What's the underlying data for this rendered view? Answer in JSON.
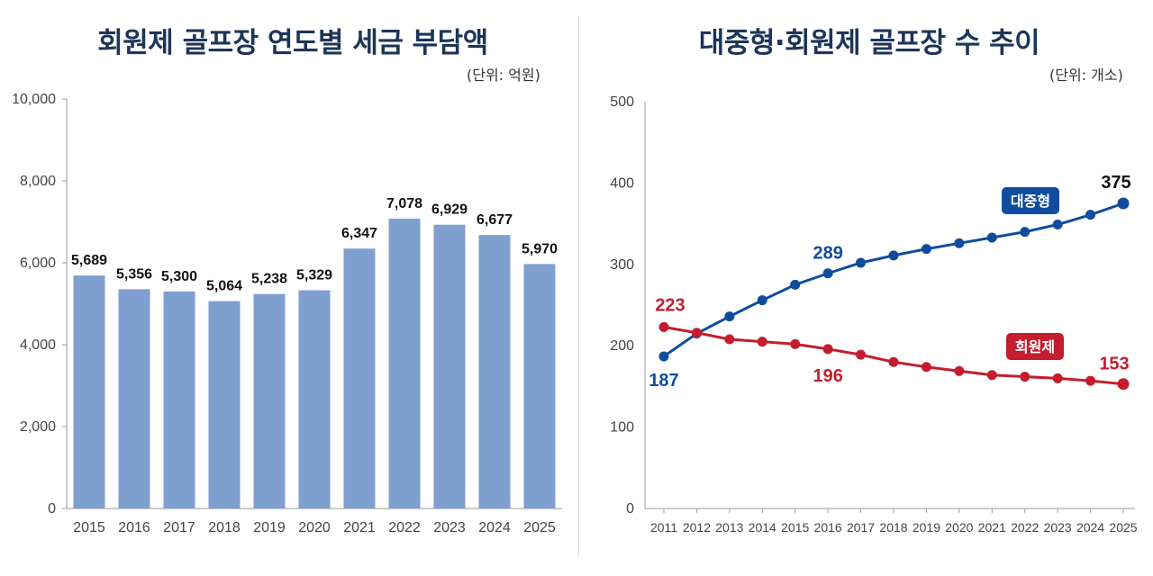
{
  "chart_data": [
    {
      "type": "bar",
      "title": "회원제 골프장 연도별 세금 부담액",
      "unit": "(단위: 억원)",
      "categories": [
        "2015",
        "2016",
        "2017",
        "2018",
        "2019",
        "2020",
        "2021",
        "2022",
        "2023",
        "2024",
        "2025"
      ],
      "values": [
        5689,
        5356,
        5300,
        5064,
        5238,
        5329,
        6347,
        7078,
        6929,
        6677,
        5970
      ],
      "data_labels": [
        "5,689",
        "5,356",
        "5,300",
        "5,064",
        "5,238",
        "5,329",
        "6,347",
        "7,078",
        "6,929",
        "6,677",
        "5,970"
      ],
      "ylim": [
        0,
        10000
      ],
      "yticks": [
        "0",
        "2,000",
        "4,000",
        "6,000",
        "8,000",
        "10,000"
      ],
      "colors": {
        "bar": "#7f9fcf"
      }
    },
    {
      "type": "line",
      "title": "대중형·회원제 골프장 수 추이",
      "unit": "(단위: 개소)",
      "x": [
        "2011",
        "2012",
        "2013",
        "2014",
        "2015",
        "2016",
        "2017",
        "2018",
        "2019",
        "2020",
        "2021",
        "2022",
        "2023",
        "2024",
        "2025"
      ],
      "ylim": [
        0,
        500
      ],
      "yticks": [
        "0",
        "100",
        "200",
        "300",
        "400",
        "500"
      ],
      "series": [
        {
          "name": "대중형",
          "color": "#0f4c9e",
          "values": [
            187,
            215,
            236,
            256,
            275,
            289,
            302,
            311,
            319,
            326,
            333,
            340,
            349,
            361,
            375
          ],
          "labels": [
            {
              "index": 0,
              "text": "187"
            },
            {
              "index": 5,
              "text": "289"
            },
            {
              "index": 14,
              "text": "375"
            }
          ]
        },
        {
          "name": "회원제",
          "color": "#c41d2e",
          "values": [
            223,
            216,
            208,
            205,
            202,
            196,
            189,
            180,
            174,
            169,
            164,
            162,
            160,
            157,
            153
          ],
          "labels": [
            {
              "index": 0,
              "text": "223"
            },
            {
              "index": 5,
              "text": "196"
            },
            {
              "index": 14,
              "text": "153"
            }
          ]
        }
      ]
    }
  ]
}
